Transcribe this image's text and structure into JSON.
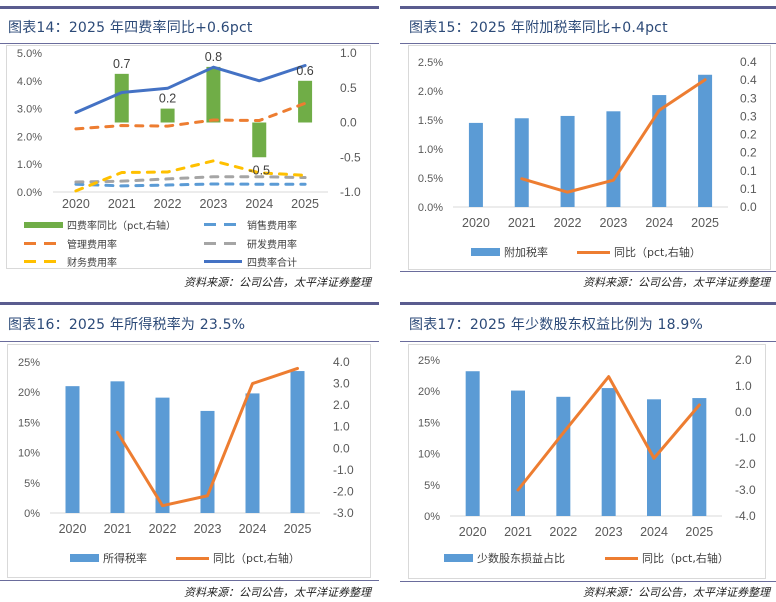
{
  "panels": [
    {
      "title": "图表14：2025 年四费率同比+0.6pct",
      "source": "资料来源：公司公告，太平洋证券整理",
      "legend": [
        "四费率同比（pct,右轴）",
        "销售费用率",
        "管理费用率",
        "研发费用率",
        "财务费用率",
        "四费率合计"
      ]
    },
    {
      "title": "图表15：2025 年附加税率同比+0.4pct",
      "source": "资料来源：公司公告，太平洋证券整理",
      "legend": [
        "附加税率",
        "同比（pct,右轴）"
      ]
    },
    {
      "title": "图表16：2025 年所得税率为 23.5%",
      "source": "资料来源：公司公告，太平洋证券整理",
      "legend": [
        "所得税率",
        "同比（pct,右轴）"
      ]
    },
    {
      "title": "图表17：2025 年少数股东权益比例为 18.9%",
      "source": "资料来源：公司公告，太平洋证券整理",
      "legend": [
        "少数股东损益占比",
        "同比（pct,右轴）"
      ]
    }
  ],
  "colors": {
    "green": "#70ad47",
    "blue_bar": "#5b9bd5",
    "orange": "#ed7d31",
    "gray": "#a5a5a5",
    "yellow": "#ffc000",
    "dark_blue": "#4472c4",
    "title": "#2c4a78",
    "rule": "#5a5c8f"
  },
  "chart_data": [
    {
      "type": "bar+line",
      "title": "图表14：2025 年四费率同比+0.6pct",
      "categories": [
        "2020",
        "2021",
        "2022",
        "2023",
        "2024",
        "2025"
      ],
      "left_axis": {
        "min": 0,
        "max": 0.05,
        "ticks": [
          "0.0%",
          "1.0%",
          "2.0%",
          "3.0%",
          "4.0%",
          "5.0%"
        ]
      },
      "right_axis": {
        "min": -1.0,
        "max": 1.0,
        "ticks": [
          "-1.0",
          "-0.5",
          "0.0",
          "0.5",
          "1.0"
        ]
      },
      "bars": [
        {
          "name": "四费率同比（pct,右轴）",
          "axis": "right",
          "color": "#70ad47",
          "values": [
            null,
            0.7,
            0.2,
            0.8,
            -0.5,
            0.6
          ],
          "labels": [
            "",
            "0.7",
            "0.2",
            "0.8",
            "-0.5",
            "0.6"
          ]
        }
      ],
      "lines": [
        {
          "name": "销售费用率",
          "axis": "left",
          "color": "#5b9bd5",
          "dashed": true,
          "values": [
            0.0028,
            0.0022,
            0.0025,
            0.0029,
            0.0028,
            0.0028
          ]
        },
        {
          "name": "管理费用率",
          "axis": "left",
          "color": "#ed7d31",
          "dashed": true,
          "values": [
            0.0227,
            0.0239,
            0.0237,
            0.0259,
            0.0257,
            0.0319
          ]
        },
        {
          "name": "研发费用率",
          "axis": "left",
          "color": "#a5a5a5",
          "dashed": true,
          "values": [
            0.0036,
            0.0039,
            0.0047,
            0.0055,
            0.0055,
            0.0052
          ]
        },
        {
          "name": "财务费用率",
          "axis": "left",
          "color": "#ffc000",
          "dashed": true,
          "values": [
            0.0004,
            0.007,
            0.0072,
            0.0112,
            0.0069,
            0.006
          ]
        },
        {
          "name": "四费率合计",
          "axis": "left",
          "color": "#4472c4",
          "dashed": false,
          "values": [
            0.0286,
            0.0358,
            0.0373,
            0.0449,
            0.04,
            0.0455
          ]
        }
      ]
    },
    {
      "type": "bar+line",
      "title": "图表15：2025 年附加税率同比+0.4pct",
      "categories": [
        "2020",
        "2021",
        "2022",
        "2023",
        "2024",
        "2025"
      ],
      "left_axis": {
        "min": 0,
        "max": 0.025,
        "ticks": [
          "0.0%",
          "0.5%",
          "1.0%",
          "1.5%",
          "2.0%",
          "2.5%"
        ]
      },
      "right_axis": {
        "min": 0,
        "max": 0.4,
        "ticks": [
          "0.0",
          "0.1",
          "0.1",
          "0.2",
          "0.2",
          "0.3",
          "0.3",
          "0.4",
          "0.4"
        ]
      },
      "bars": [
        {
          "name": "附加税率",
          "axis": "left",
          "color": "#5b9bd5",
          "values": [
            0.0145,
            0.0153,
            0.0157,
            0.0165,
            0.0193,
            0.0228
          ]
        }
      ],
      "lines": [
        {
          "name": "同比（pct,右轴）",
          "axis": "right",
          "color": "#ed7d31",
          "dashed": false,
          "values": [
            null,
            0.078,
            0.041,
            0.074,
            0.267,
            0.351
          ]
        }
      ]
    },
    {
      "type": "bar+line",
      "title": "图表16：2025 年所得税率为 23.5%",
      "categories": [
        "2020",
        "2021",
        "2022",
        "2023",
        "2024",
        "2025"
      ],
      "left_axis": {
        "min": 0,
        "max": 0.25,
        "ticks": [
          "0%",
          "5%",
          "10%",
          "15%",
          "20%",
          "25%"
        ]
      },
      "right_axis": {
        "min": -3.0,
        "max": 4.0,
        "ticks": [
          "-3.0",
          "-2.0",
          "-1.0",
          "0.0",
          "1.0",
          "2.0",
          "3.0",
          "4.0"
        ]
      },
      "bars": [
        {
          "name": "所得税率",
          "axis": "left",
          "color": "#5b9bd5",
          "values": [
            0.21,
            0.218,
            0.191,
            0.169,
            0.198,
            0.235
          ]
        }
      ],
      "lines": [
        {
          "name": "同比（pct,右轴）",
          "axis": "right",
          "color": "#ed7d31",
          "dashed": false,
          "values": [
            null,
            0.74,
            -2.66,
            -2.2,
            3.0,
            3.7
          ]
        }
      ]
    },
    {
      "type": "bar+line",
      "title": "图表17：2025 年少数股东权益比例为 18.9%",
      "categories": [
        "2020",
        "2021",
        "2022",
        "2023",
        "2024",
        "2025"
      ],
      "left_axis": {
        "min": 0,
        "max": 0.25,
        "ticks": [
          "0%",
          "5%",
          "10%",
          "15%",
          "20%",
          "25%"
        ]
      },
      "right_axis": {
        "min": -4.0,
        "max": 2.0,
        "ticks": [
          "-4.0",
          "-3.0",
          "-2.0",
          "-1.0",
          "0.0",
          "1.0",
          "2.0"
        ]
      },
      "bars": [
        {
          "name": "少数股东损益占比",
          "axis": "left",
          "color": "#5b9bd5",
          "values": [
            0.232,
            0.201,
            0.191,
            0.205,
            0.187,
            0.189
          ]
        }
      ],
      "lines": [
        {
          "name": "同比（pct,右轴）",
          "axis": "right",
          "color": "#ed7d31",
          "dashed": false,
          "values": [
            null,
            -3.0,
            -0.8,
            1.36,
            -1.78,
            0.27
          ]
        }
      ]
    }
  ]
}
